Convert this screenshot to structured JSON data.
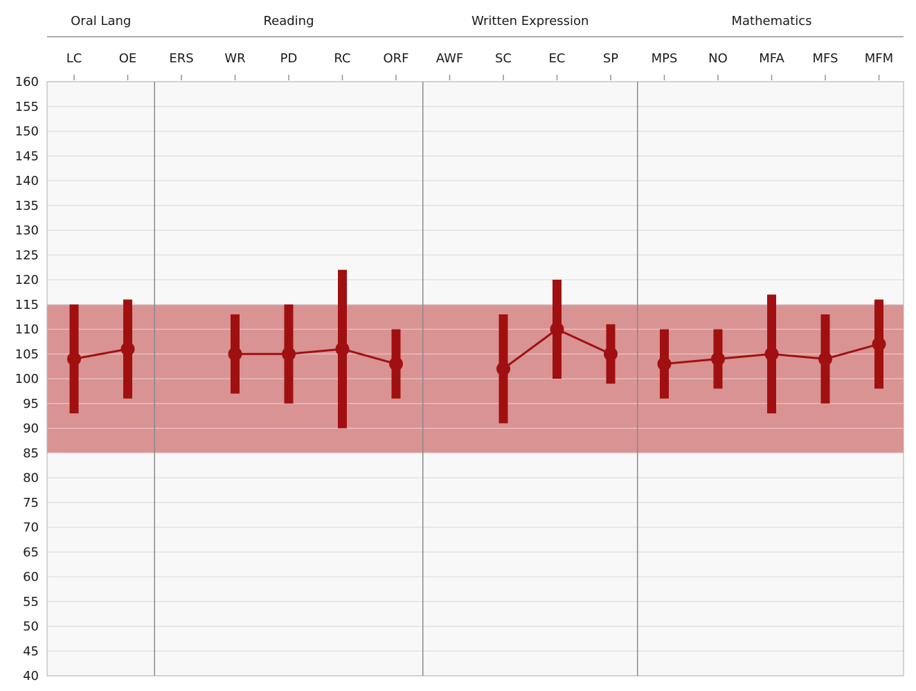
{
  "chart_data": {
    "type": "line",
    "title": "",
    "xlabel": "",
    "ylabel": "",
    "ylim": [
      40,
      160
    ],
    "yticks": [
      40,
      45,
      50,
      55,
      60,
      65,
      70,
      75,
      80,
      85,
      90,
      95,
      100,
      105,
      110,
      115,
      120,
      125,
      130,
      135,
      140,
      145,
      150,
      155,
      160
    ],
    "grid": true,
    "average_band": {
      "low": 85,
      "high": 115,
      "color": "#d99393"
    },
    "groups": [
      {
        "label": "Oral Lang",
        "categories": [
          "LC",
          "OE"
        ]
      },
      {
        "label": "Reading",
        "categories": [
          "ERS",
          "WR",
          "PD",
          "RC",
          "ORF"
        ]
      },
      {
        "label": "Written Expression",
        "categories": [
          "AWF",
          "SC",
          "EC",
          "SP"
        ]
      },
      {
        "label": "Mathematics",
        "categories": [
          "MPS",
          "NO",
          "MFA",
          "MFS",
          "MFM"
        ]
      }
    ],
    "categories": [
      "LC",
      "OE",
      "ERS",
      "WR",
      "PD",
      "RC",
      "ORF",
      "AWF",
      "SC",
      "EC",
      "SP",
      "MPS",
      "NO",
      "MFA",
      "MFS",
      "MFM"
    ],
    "series": [
      {
        "values": [
          104,
          106,
          null,
          105,
          105,
          106,
          103,
          null,
          102,
          110,
          105,
          103,
          104,
          105,
          104,
          107
        ],
        "ci_low": [
          93,
          96,
          null,
          97,
          95,
          90,
          96,
          null,
          91,
          100,
          99,
          96,
          98,
          93,
          95,
          98
        ],
        "ci_high": [
          115,
          116,
          null,
          113,
          115,
          122,
          110,
          null,
          113,
          120,
          111,
          110,
          110,
          117,
          113,
          116
        ]
      }
    ],
    "colors": {
      "series": "#a01010",
      "band": "#d99393",
      "grid": "#dddddd",
      "group_divider": "#8a8a8a",
      "plot_background": "#f8f8f8",
      "axis": "#909090"
    }
  }
}
